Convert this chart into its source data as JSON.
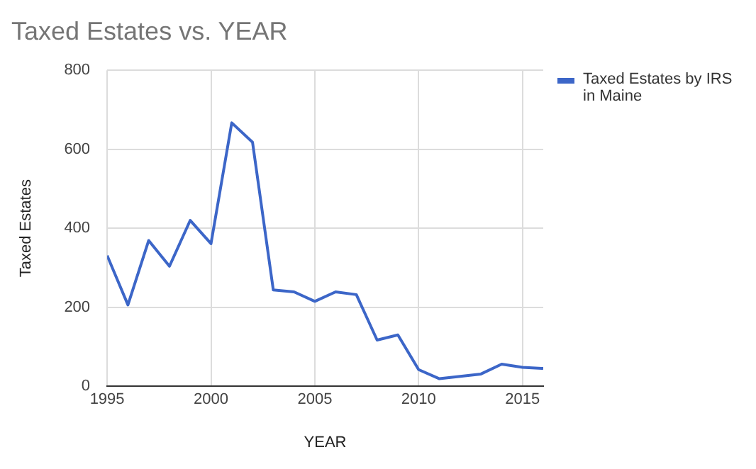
{
  "chart_data": {
    "type": "line",
    "title": "Taxed Estates vs. YEAR",
    "xlabel": "YEAR",
    "ylabel": "Taxed Estates",
    "x": [
      1995,
      1996,
      1997,
      1998,
      1999,
      2000,
      2001,
      2002,
      2003,
      2004,
      2005,
      2006,
      2007,
      2008,
      2009,
      2010,
      2011,
      2012,
      2013,
      2014,
      2015,
      2016
    ],
    "series": [
      {
        "name": "Taxed Estates by IRS in Maine",
        "color": "#3c66c8",
        "values": [
          331,
          206,
          369,
          304,
          420,
          361,
          667,
          618,
          244,
          239,
          215,
          239,
          232,
          117,
          130,
          42,
          19,
          25,
          31,
          56,
          48,
          45
        ]
      }
    ],
    "xlim": [
      1995,
      2016
    ],
    "xticks": [
      1995,
      2000,
      2005,
      2010,
      2015
    ],
    "ylim": [
      0,
      800
    ],
    "yticks": [
      0,
      200,
      400,
      600,
      800
    ],
    "grid": true,
    "legend": "right",
    "marker": "none",
    "line_style": "solid"
  }
}
